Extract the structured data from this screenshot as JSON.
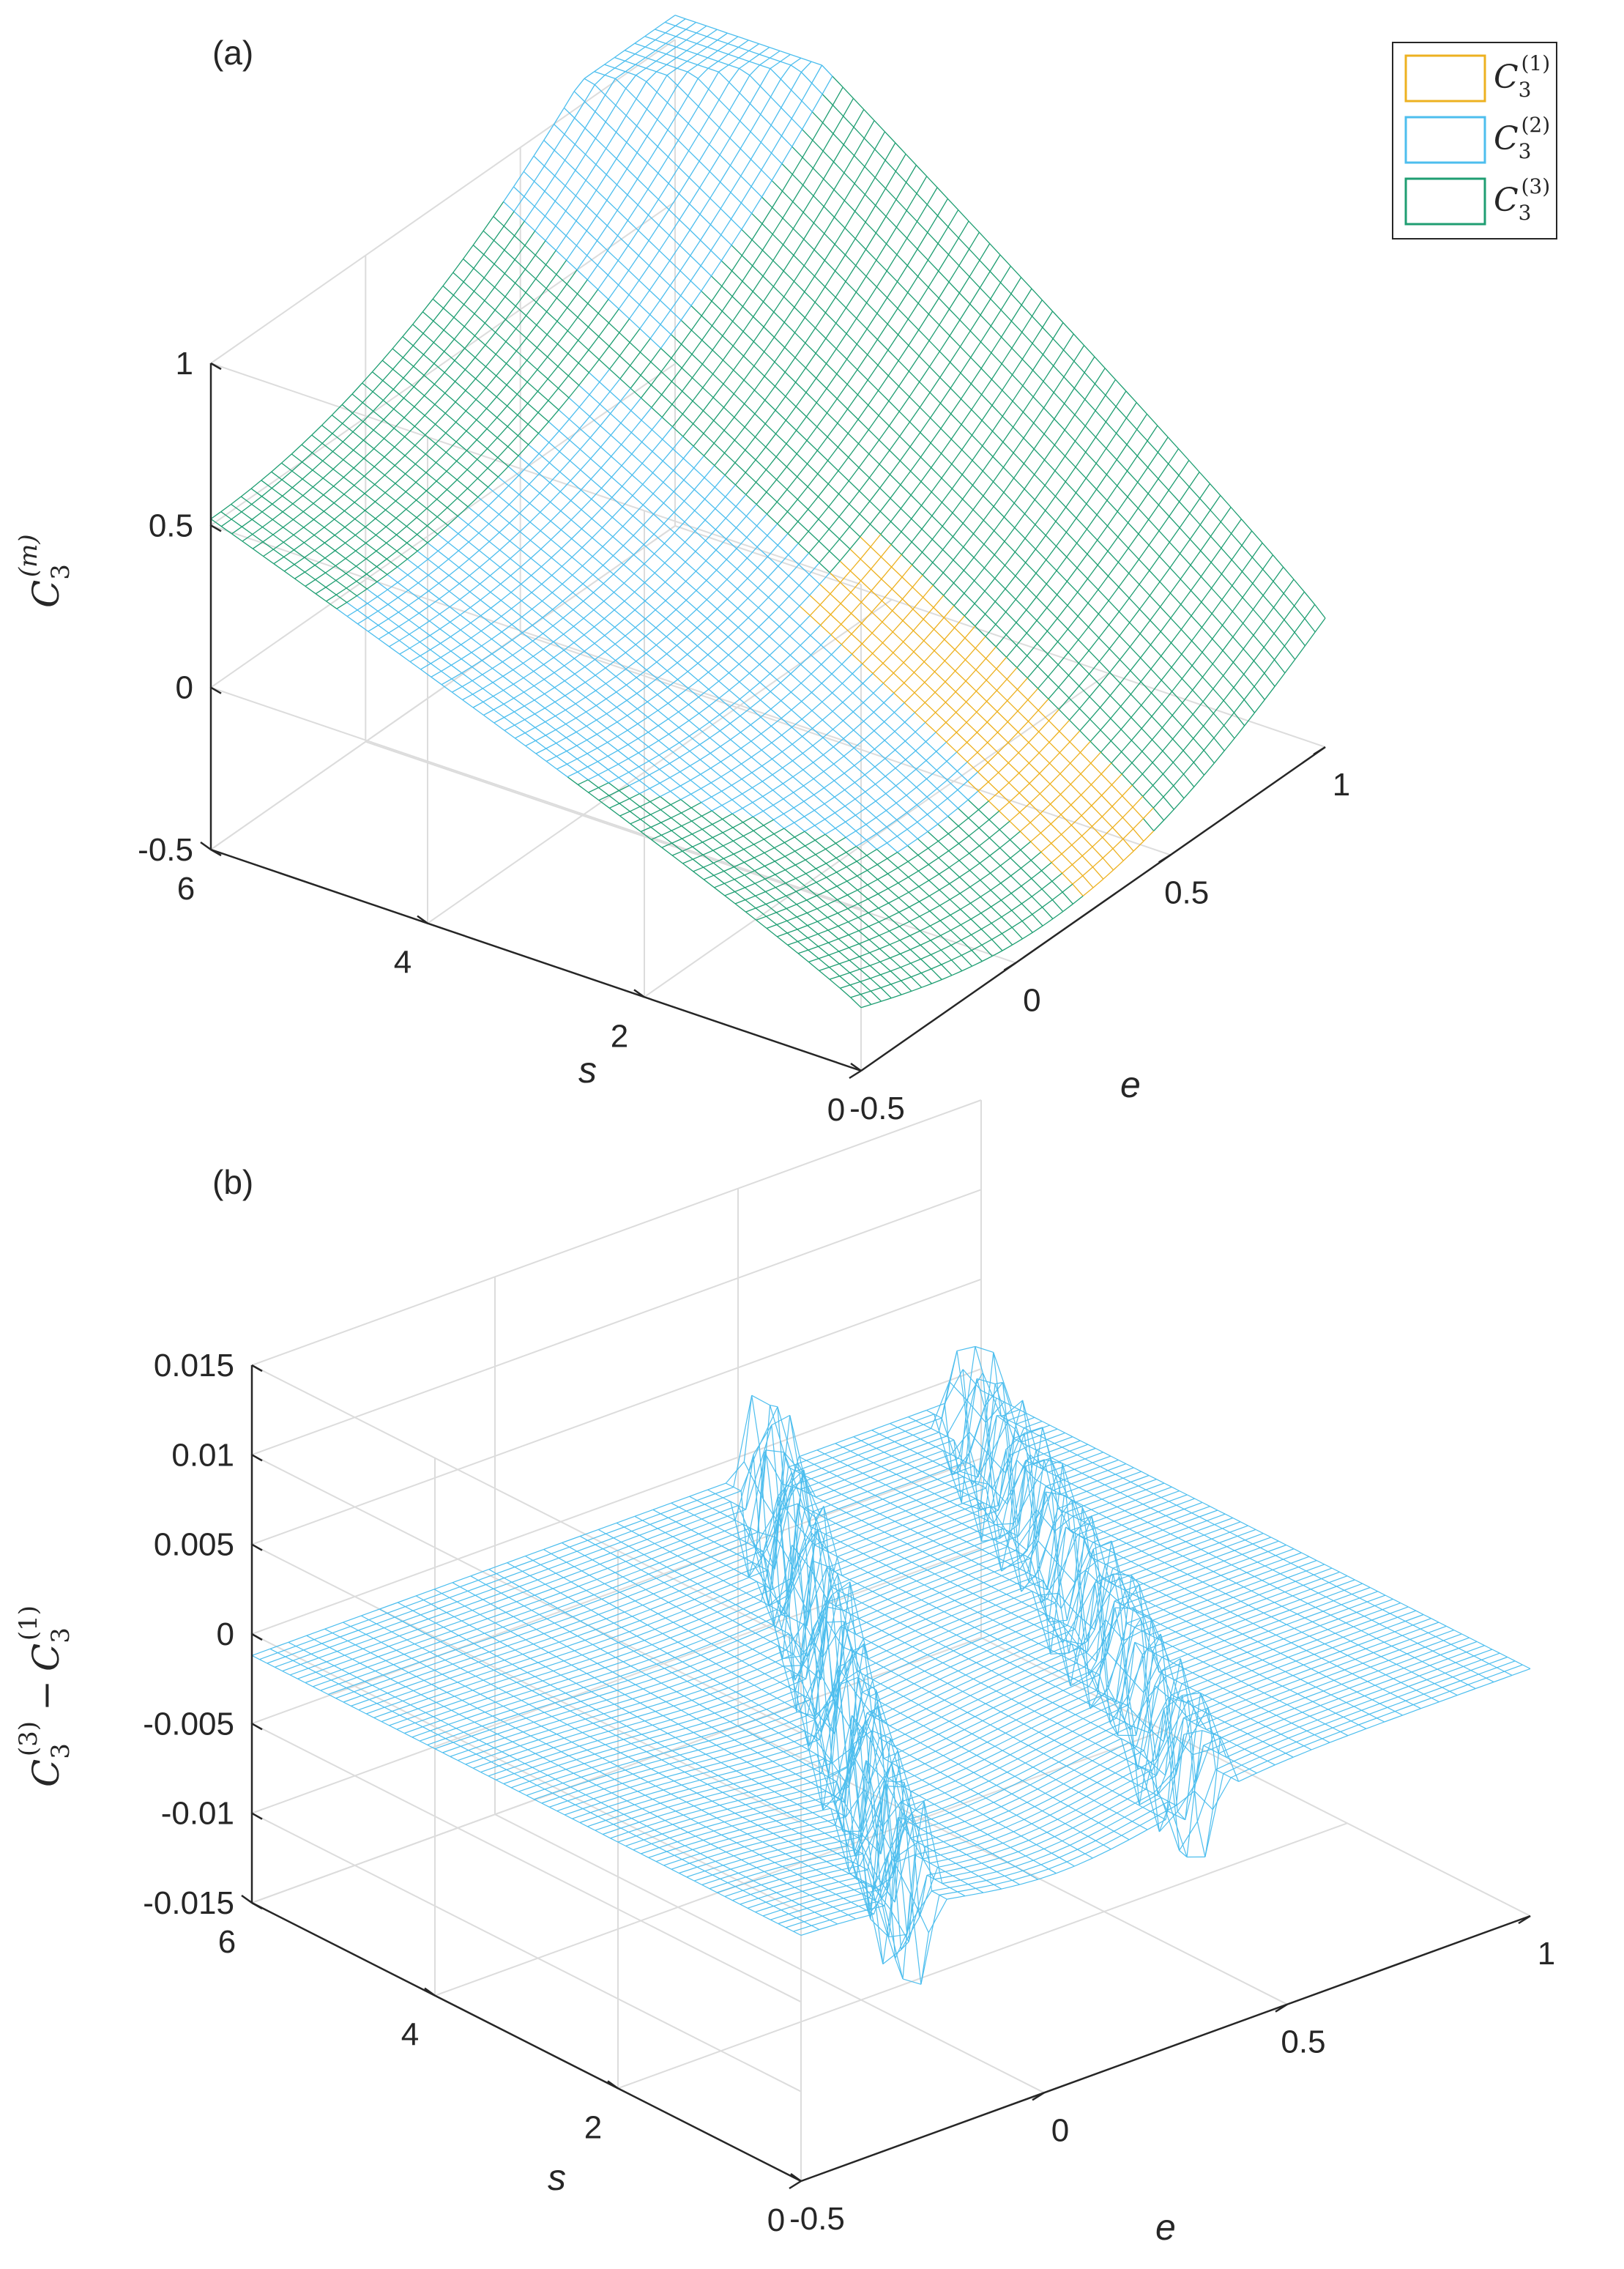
{
  "chart_data": [
    {
      "panel_label": "(a)",
      "type": "surface-wireframe",
      "xlabel": "e",
      "ylabel": "s",
      "zlabel": "C3(m)",
      "zlabel_main": "C",
      "zlabel_sub": "3",
      "zlabel_sup": "(m)",
      "xlim": [
        -0.5,
        1
      ],
      "ylim": [
        0,
        6
      ],
      "zlim": [
        -0.5,
        1
      ],
      "xticks": [
        "-0.5",
        "0",
        "0.5",
        "1"
      ],
      "yticks": [
        "0",
        "2",
        "4",
        "6"
      ],
      "zticks": [
        "-0.5",
        "0",
        "0.5",
        "1"
      ],
      "grid": true,
      "legend_position": "top-right",
      "series": [
        {
          "name": "C3(1)",
          "label_main": "C",
          "label_sub": "3",
          "label_sup": "(1)",
          "color": "#EDB120"
        },
        {
          "name": "C3(2)",
          "label_main": "C",
          "label_sub": "3",
          "label_sup": "(2)",
          "color": "#4DBEEE"
        },
        {
          "name": "C3(3)",
          "label_main": "C",
          "label_sub": "3",
          "label_sup": "(3)",
          "color": "#1F9E72"
        }
      ]
    },
    {
      "panel_label": "(b)",
      "type": "surface-wireframe",
      "xlabel": "e",
      "ylabel": "s",
      "zlabel": "C3(3) − C3(1)",
      "zlabel_a_main": "C",
      "zlabel_a_sub": "3",
      "zlabel_a_sup": "(3)",
      "zlabel_op": "−",
      "zlabel_b_main": "C",
      "zlabel_b_sub": "3",
      "zlabel_b_sup": "(1)",
      "xlim": [
        -0.5,
        1
      ],
      "ylim": [
        0,
        6
      ],
      "zlim": [
        -0.015,
        0.015
      ],
      "xticks": [
        "-0.5",
        "0",
        "0.5",
        "1"
      ],
      "yticks": [
        "0",
        "2",
        "4",
        "6"
      ],
      "zticks": [
        "-0.015",
        "-0.01",
        "-0.005",
        "0",
        "0.005",
        "0.01",
        "0.015"
      ],
      "grid": true,
      "series": [
        {
          "name": "C3(3) − C3(1)",
          "color": "#4DBEEE"
        }
      ]
    }
  ]
}
